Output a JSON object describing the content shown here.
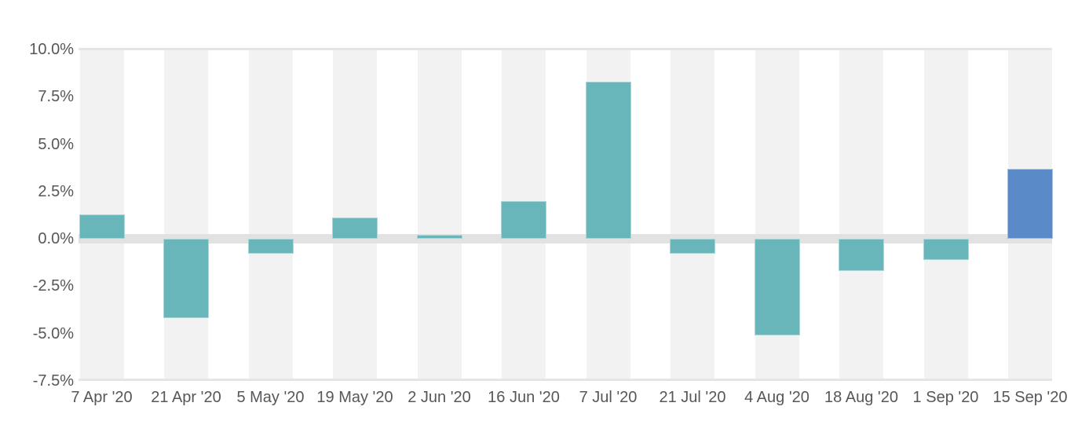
{
  "chart_data": {
    "type": "bar",
    "title": "",
    "xlabel": "",
    "ylabel": "",
    "categories": [
      "7 Apr '20",
      "21 Apr '20",
      "5 May '20",
      "19 May '20",
      "2 Jun '20",
      "16 Jun '20",
      "7 Jul '20",
      "21 Jul '20",
      "4 Aug '20",
      "18 Aug '20",
      "1 Sep '20",
      "15 Sep '20"
    ],
    "values": [
      1.3,
      -4.2,
      -0.8,
      1.1,
      0.2,
      2.0,
      8.3,
      -0.8,
      -5.1,
      -1.7,
      -1.1,
      3.7
    ],
    "value_unit": "%",
    "ylim": [
      -7.5,
      10.0
    ],
    "ytick_step": 2.5,
    "ytick_values": [
      10.0,
      7.5,
      5.0,
      2.5,
      0.0,
      -2.5,
      -5.0,
      -7.5
    ],
    "ytick_labels": [
      "10.0%",
      "7.5%",
      "5.0%",
      "2.5%",
      "0.0%",
      "-2.5%",
      "-5.0%",
      "-7.5%"
    ],
    "legend": [],
    "grid": "horizontal lines at top and bottom only, emphasized zero band, alternating vertical background stripes per category",
    "highlight_index": 11,
    "colors": {
      "bar_default": "#68b6ba",
      "bar_highlight": "#5b8ac8",
      "background_stripe": "#f2f2f2",
      "zero_band": "#e2e2e2",
      "gridline": "#e5e5e5",
      "tick_text": "#56575a"
    }
  }
}
